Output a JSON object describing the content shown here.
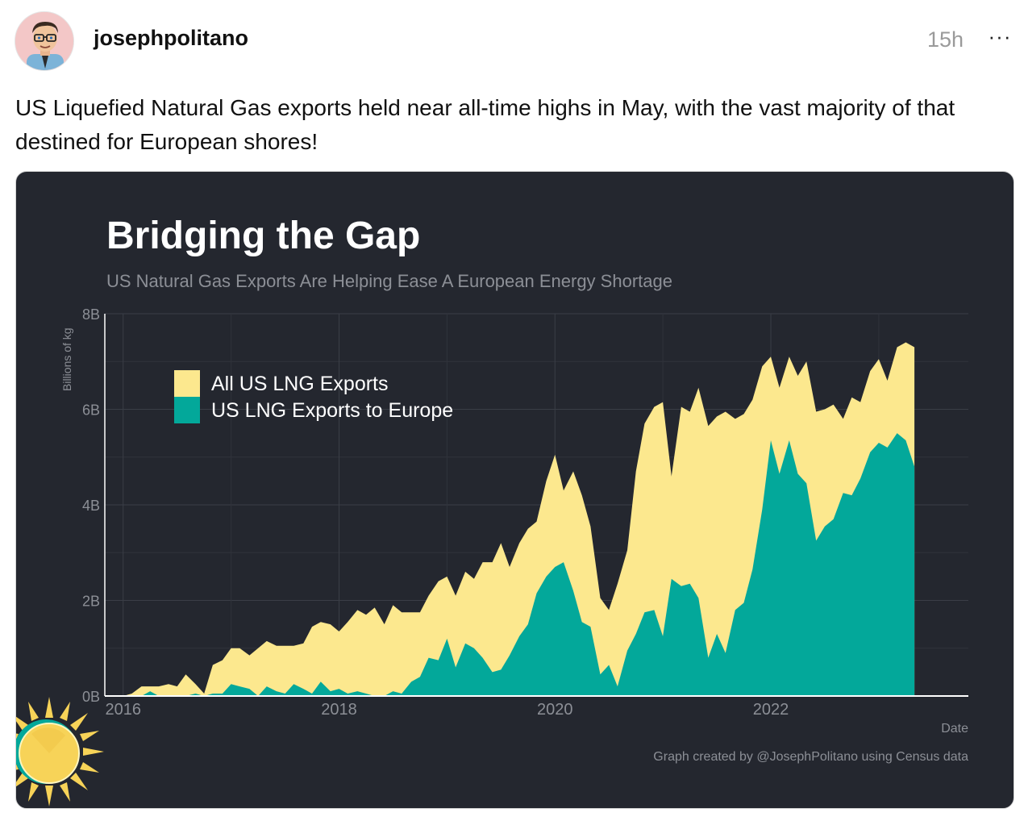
{
  "post": {
    "username": "josephpolitano",
    "timestamp": "15h",
    "more_label": "···",
    "text": "US Liquefied Natural Gas exports held near all-time highs in May, with the vast majority of that destined for European shores!"
  },
  "icons": {
    "avatar": "cartoon-avatar-icon",
    "more": "ellipsis-icon",
    "logo": "sun-logo-icon"
  },
  "colors": {
    "chart_background": "#24272f",
    "all_exports": "#fce88e",
    "europe_exports": "#03a89a",
    "axis_text": "#8c8f96",
    "title_text": "#ffffff"
  },
  "chart_data": {
    "type": "area",
    "title": "Bridging the Gap",
    "subtitle": "US Natural Gas Exports Are Helping Ease A European Energy Shortage",
    "xlabel": "Date",
    "ylabel": "Billions of kg",
    "ylim": [
      0,
      8
    ],
    "xlim": [
      2015.83,
      2023.83
    ],
    "y_ticks": [
      {
        "v": 0,
        "label": "0B"
      },
      {
        "v": 2,
        "label": "2B"
      },
      {
        "v": 4,
        "label": "4B"
      },
      {
        "v": 6,
        "label": "6B"
      },
      {
        "v": 8,
        "label": "8B"
      }
    ],
    "x_ticks": [
      {
        "v": 2016,
        "label": "2016"
      },
      {
        "v": 2018,
        "label": "2018"
      },
      {
        "v": 2020,
        "label": "2020"
      },
      {
        "v": 2022,
        "label": "2022"
      }
    ],
    "grid": true,
    "legend_position": "top-left",
    "caption": "Graph created by @JosephPolitano using Census data",
    "series": [
      {
        "name": "All US LNG Exports",
        "color": "#fce88e",
        "points": [
          [
            2016.0,
            0.0
          ],
          [
            2016.08,
            0.05
          ],
          [
            2016.17,
            0.2
          ],
          [
            2016.25,
            0.2
          ],
          [
            2016.33,
            0.2
          ],
          [
            2016.42,
            0.25
          ],
          [
            2016.5,
            0.2
          ],
          [
            2016.58,
            0.45
          ],
          [
            2016.67,
            0.25
          ],
          [
            2016.75,
            0.05
          ],
          [
            2016.83,
            0.65
          ],
          [
            2016.92,
            0.75
          ],
          [
            2017.0,
            1.0
          ],
          [
            2017.08,
            1.0
          ],
          [
            2017.17,
            0.85
          ],
          [
            2017.25,
            1.0
          ],
          [
            2017.33,
            1.15
          ],
          [
            2017.42,
            1.05
          ],
          [
            2017.5,
            1.05
          ],
          [
            2017.58,
            1.05
          ],
          [
            2017.67,
            1.1
          ],
          [
            2017.75,
            1.45
          ],
          [
            2017.83,
            1.55
          ],
          [
            2017.92,
            1.5
          ],
          [
            2018.0,
            1.35
          ],
          [
            2018.08,
            1.55
          ],
          [
            2018.17,
            1.8
          ],
          [
            2018.25,
            1.7
          ],
          [
            2018.33,
            1.85
          ],
          [
            2018.42,
            1.5
          ],
          [
            2018.5,
            1.9
          ],
          [
            2018.58,
            1.75
          ],
          [
            2018.67,
            1.75
          ],
          [
            2018.75,
            1.75
          ],
          [
            2018.83,
            2.1
          ],
          [
            2018.92,
            2.4
          ],
          [
            2019.0,
            2.5
          ],
          [
            2019.08,
            2.1
          ],
          [
            2019.17,
            2.6
          ],
          [
            2019.25,
            2.45
          ],
          [
            2019.33,
            2.8
          ],
          [
            2019.42,
            2.8
          ],
          [
            2019.5,
            3.2
          ],
          [
            2019.58,
            2.7
          ],
          [
            2019.67,
            3.2
          ],
          [
            2019.75,
            3.5
          ],
          [
            2019.83,
            3.65
          ],
          [
            2019.92,
            4.5
          ],
          [
            2020.0,
            5.05
          ],
          [
            2020.08,
            4.3
          ],
          [
            2020.17,
            4.7
          ],
          [
            2020.25,
            4.2
          ],
          [
            2020.33,
            3.55
          ],
          [
            2020.42,
            2.05
          ],
          [
            2020.5,
            1.8
          ],
          [
            2020.58,
            2.35
          ],
          [
            2020.67,
            3.05
          ],
          [
            2020.75,
            4.7
          ],
          [
            2020.83,
            5.7
          ],
          [
            2020.92,
            6.05
          ],
          [
            2021.0,
            6.15
          ],
          [
            2021.08,
            4.6
          ],
          [
            2021.17,
            6.05
          ],
          [
            2021.25,
            5.95
          ],
          [
            2021.33,
            6.45
          ],
          [
            2021.42,
            5.65
          ],
          [
            2021.5,
            5.85
          ],
          [
            2021.58,
            5.95
          ],
          [
            2021.67,
            5.8
          ],
          [
            2021.75,
            5.9
          ],
          [
            2021.83,
            6.2
          ],
          [
            2021.92,
            6.9
          ],
          [
            2022.0,
            7.1
          ],
          [
            2022.08,
            6.45
          ],
          [
            2022.17,
            7.1
          ],
          [
            2022.25,
            6.7
          ],
          [
            2022.33,
            7.0
          ],
          [
            2022.42,
            5.95
          ],
          [
            2022.5,
            6.0
          ],
          [
            2022.58,
            6.1
          ],
          [
            2022.67,
            5.8
          ],
          [
            2022.75,
            6.25
          ],
          [
            2022.83,
            6.15
          ],
          [
            2022.92,
            6.8
          ],
          [
            2023.0,
            7.05
          ],
          [
            2023.08,
            6.6
          ],
          [
            2023.17,
            7.3
          ],
          [
            2023.25,
            7.4
          ],
          [
            2023.33,
            7.3
          ]
        ]
      },
      {
        "name": "US LNG Exports to Europe",
        "color": "#03a89a",
        "points": [
          [
            2016.0,
            0.0
          ],
          [
            2016.08,
            0.0
          ],
          [
            2016.17,
            0.0
          ],
          [
            2016.25,
            0.1
          ],
          [
            2016.33,
            0.0
          ],
          [
            2016.42,
            0.0
          ],
          [
            2016.5,
            0.0
          ],
          [
            2016.58,
            0.0
          ],
          [
            2016.67,
            0.05
          ],
          [
            2016.75,
            0.0
          ],
          [
            2016.83,
            0.05
          ],
          [
            2016.92,
            0.05
          ],
          [
            2017.0,
            0.25
          ],
          [
            2017.08,
            0.2
          ],
          [
            2017.17,
            0.15
          ],
          [
            2017.25,
            0.0
          ],
          [
            2017.33,
            0.2
          ],
          [
            2017.42,
            0.1
          ],
          [
            2017.5,
            0.05
          ],
          [
            2017.58,
            0.25
          ],
          [
            2017.67,
            0.15
          ],
          [
            2017.75,
            0.05
          ],
          [
            2017.83,
            0.3
          ],
          [
            2017.92,
            0.1
          ],
          [
            2018.0,
            0.15
          ],
          [
            2018.08,
            0.05
          ],
          [
            2018.17,
            0.1
          ],
          [
            2018.25,
            0.05
          ],
          [
            2018.33,
            0.0
          ],
          [
            2018.42,
            0.0
          ],
          [
            2018.5,
            0.1
          ],
          [
            2018.58,
            0.05
          ],
          [
            2018.67,
            0.3
          ],
          [
            2018.75,
            0.4
          ],
          [
            2018.83,
            0.8
          ],
          [
            2018.92,
            0.75
          ],
          [
            2019.0,
            1.2
          ],
          [
            2019.08,
            0.6
          ],
          [
            2019.17,
            1.1
          ],
          [
            2019.25,
            1.0
          ],
          [
            2019.33,
            0.8
          ],
          [
            2019.42,
            0.5
          ],
          [
            2019.5,
            0.55
          ],
          [
            2019.58,
            0.85
          ],
          [
            2019.67,
            1.25
          ],
          [
            2019.75,
            1.5
          ],
          [
            2019.83,
            2.15
          ],
          [
            2019.92,
            2.5
          ],
          [
            2020.0,
            2.7
          ],
          [
            2020.08,
            2.8
          ],
          [
            2020.17,
            2.2
          ],
          [
            2020.25,
            1.55
          ],
          [
            2020.33,
            1.45
          ],
          [
            2020.42,
            0.45
          ],
          [
            2020.5,
            0.65
          ],
          [
            2020.58,
            0.2
          ],
          [
            2020.67,
            0.95
          ],
          [
            2020.75,
            1.3
          ],
          [
            2020.83,
            1.75
          ],
          [
            2020.92,
            1.8
          ],
          [
            2021.0,
            1.25
          ],
          [
            2021.08,
            2.45
          ],
          [
            2021.17,
            2.3
          ],
          [
            2021.25,
            2.35
          ],
          [
            2021.33,
            2.05
          ],
          [
            2021.42,
            0.8
          ],
          [
            2021.5,
            1.3
          ],
          [
            2021.58,
            0.9
          ],
          [
            2021.67,
            1.8
          ],
          [
            2021.75,
            1.95
          ],
          [
            2021.83,
            2.65
          ],
          [
            2021.92,
            3.9
          ],
          [
            2022.0,
            5.35
          ],
          [
            2022.08,
            4.65
          ],
          [
            2022.17,
            5.35
          ],
          [
            2022.25,
            4.65
          ],
          [
            2022.33,
            4.45
          ],
          [
            2022.42,
            3.25
          ],
          [
            2022.5,
            3.55
          ],
          [
            2022.58,
            3.7
          ],
          [
            2022.67,
            4.25
          ],
          [
            2022.75,
            4.2
          ],
          [
            2022.83,
            4.55
          ],
          [
            2022.92,
            5.1
          ],
          [
            2023.0,
            5.3
          ],
          [
            2023.08,
            5.2
          ],
          [
            2023.17,
            5.5
          ],
          [
            2023.25,
            5.35
          ],
          [
            2023.33,
            4.8
          ]
        ]
      }
    ]
  }
}
